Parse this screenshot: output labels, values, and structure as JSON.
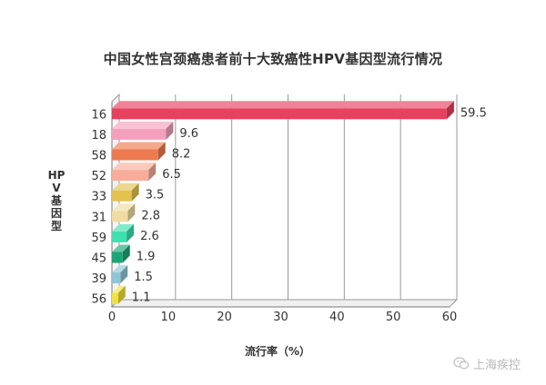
{
  "title": "中国女性宫颈癌患者前十大致癌性HPV基因型流行情况",
  "chart_data": {
    "type": "bar",
    "orientation": "horizontal",
    "title": "中国女性宫颈癌患者前十大致癌性HPV基因型流行情况",
    "xlabel": "流行率（%）",
    "ylabel": "HPV基因型",
    "xlim": [
      0,
      60
    ],
    "xticks": [
      "0",
      "10",
      "20",
      "30",
      "40",
      "50",
      "60"
    ],
    "grid": true,
    "categories": [
      "16",
      "18",
      "58",
      "52",
      "33",
      "31",
      "59",
      "45",
      "39",
      "56"
    ],
    "values": [
      59.5,
      9.6,
      8.2,
      6.5,
      3.5,
      2.8,
      2.6,
      1.9,
      1.5,
      1.1
    ],
    "value_labels": [
      "59.5",
      "9.6",
      "8.2",
      "6.5",
      "3.5",
      "2.8",
      "2.6",
      "1.9",
      "1.5",
      "1.1"
    ],
    "colors": [
      "#e8405f",
      "#f4a0bd",
      "#ee7a4f",
      "#f7ad9a",
      "#e3c24f",
      "#f0dca0",
      "#3fe0b0",
      "#1aa677",
      "#8ec6d6",
      "#f2e23a"
    ]
  },
  "watermark": {
    "icon": "wechat-logo-icon",
    "text": "上海疾控"
  }
}
